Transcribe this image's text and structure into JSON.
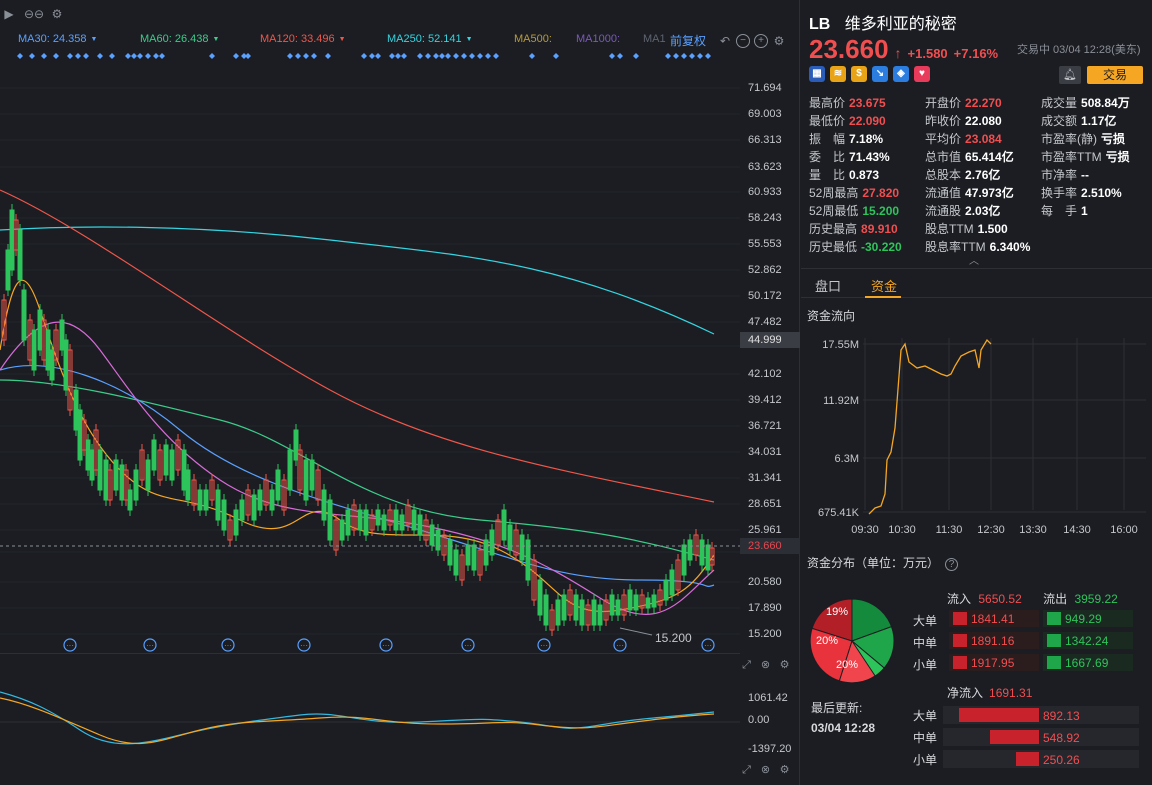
{
  "chart": {
    "ma": [
      {
        "label": "MA30: 24.358",
        "color": "#5aa0ff"
      },
      {
        "label": "MA60: 26.438",
        "color": "#3ccc8a"
      },
      {
        "label": "MA120: 33.496",
        "color": "#f0564a"
      },
      {
        "label": "MA250: 52.141",
        "color": "#35d4e0"
      },
      {
        "label": "MA500:",
        "color": "#b89b3a"
      },
      {
        "label": "MA1000:",
        "color": "#7a5ab8"
      },
      {
        "label": "MA1",
        "color": "#5e6470"
      }
    ],
    "adjust_label": "前复权",
    "price_ticks": [
      "71.694",
      "69.003",
      "66.313",
      "63.623",
      "60.933",
      "58.243",
      "55.553",
      "52.862",
      "50.172",
      "47.482",
      "44.999",
      "42.102",
      "39.412",
      "36.721",
      "34.031",
      "31.341",
      "28.651",
      "25.961",
      "23.660",
      "20.580",
      "17.890",
      "15.200"
    ],
    "current_price_tag": "23.660",
    "ref_price_tag": "44.999",
    "low_label": "15.200",
    "sub_ticks": [
      "1061.42",
      "0.00",
      "-1397.20"
    ]
  },
  "stock": {
    "code": "LB",
    "name": "维多利亚的秘密",
    "price": "23.660",
    "arrow": "↑",
    "change": "+1.580",
    "change_pct": "+7.16%",
    "status": "交易中 03/04 12:28(美东)",
    "trade_button": "交易"
  },
  "stats": [
    {
      "k": "最高价",
      "v": "23.675",
      "cls": "red"
    },
    {
      "k": "开盘价",
      "v": "22.270",
      "cls": "red"
    },
    {
      "k": "成交量",
      "v": "508.84万",
      "cls": ""
    },
    {
      "k": "最低价",
      "v": "22.090",
      "cls": "red"
    },
    {
      "k": "昨收价",
      "v": "22.080",
      "cls": ""
    },
    {
      "k": "成交额",
      "v": "1.17亿",
      "cls": ""
    },
    {
      "k": "振　幅",
      "v": "7.18%",
      "cls": ""
    },
    {
      "k": "平均价",
      "v": "23.084",
      "cls": "red"
    },
    {
      "k": "市盈率(静)",
      "v": "亏损",
      "cls": ""
    },
    {
      "k": "委　比",
      "v": "71.43%",
      "cls": ""
    },
    {
      "k": "总市值",
      "v": "65.414亿",
      "cls": ""
    },
    {
      "k": "市盈率TTM",
      "v": "亏损",
      "cls": ""
    },
    {
      "k": "量　比",
      "v": "0.873",
      "cls": ""
    },
    {
      "k": "总股本",
      "v": "2.76亿",
      "cls": ""
    },
    {
      "k": "市净率",
      "v": "--",
      "cls": ""
    },
    {
      "k": "52周最高",
      "v": "27.820",
      "cls": "red"
    },
    {
      "k": "流通值",
      "v": "47.973亿",
      "cls": ""
    },
    {
      "k": "换手率",
      "v": "2.510%",
      "cls": ""
    },
    {
      "k": "52周最低",
      "v": "15.200",
      "cls": "green"
    },
    {
      "k": "流通股",
      "v": "2.03亿",
      "cls": ""
    },
    {
      "k": "每　手",
      "v": "1",
      "cls": ""
    },
    {
      "k": "历史最高",
      "v": "89.910",
      "cls": "red"
    },
    {
      "k": "股息TTM",
      "v": "1.500",
      "cls": ""
    },
    {
      "k": "",
      "v": "",
      "cls": ""
    },
    {
      "k": "历史最低",
      "v": "-30.220",
      "cls": "green"
    },
    {
      "k": "股息率TTM",
      "v": "6.340%",
      "cls": ""
    },
    {
      "k": "",
      "v": "",
      "cls": ""
    }
  ],
  "tabs": {
    "pan": "盘口",
    "zj": "资金"
  },
  "flow": {
    "title": "资金流向",
    "y_ticks": [
      "17.55M",
      "11.92M",
      "6.3M",
      "675.41K"
    ],
    "x_ticks": [
      "09:30",
      "10:30",
      "11:30",
      "12:30",
      "13:30",
      "14:30",
      "16:00"
    ]
  },
  "dist": {
    "title": "资金分布（单位：万元）",
    "in_label": "流入",
    "in_total": "5650.52",
    "out_label": "流出",
    "out_total": "3959.22",
    "rows": [
      {
        "label": "大单",
        "in": "1841.41",
        "out": "949.29"
      },
      {
        "label": "中单",
        "in": "1891.16",
        "out": "1342.24"
      },
      {
        "label": "小单",
        "in": "1917.95",
        "out": "1667.69"
      }
    ],
    "pie_labels": [
      "19%",
      "20%",
      "20%"
    ],
    "last_update_label": "最后更新:",
    "last_update": "03/04 12:28",
    "net_label": "净流入",
    "net_total": "1691.31",
    "net_rows": [
      {
        "label": "大单",
        "value": "892.13",
        "pct": 0.892
      },
      {
        "label": "中单",
        "value": "548.92",
        "pct": 0.549
      },
      {
        "label": "小单",
        "value": "250.26",
        "pct": 0.25
      }
    ]
  }
}
